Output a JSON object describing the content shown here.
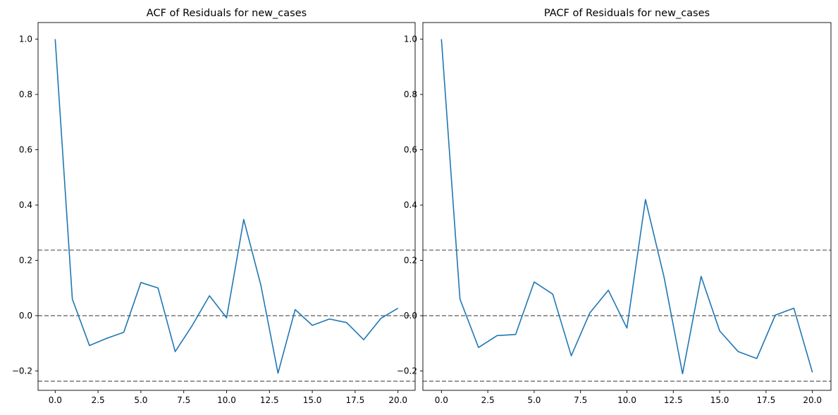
{
  "chart_data": [
    {
      "type": "line",
      "title": "ACF of Residuals for new_cases",
      "xlabel": "",
      "ylabel": "",
      "xlim": [
        -1.0,
        21.0
      ],
      "ylim": [
        -0.27,
        1.06
      ],
      "xticks": [
        0.0,
        2.5,
        5.0,
        7.5,
        10.0,
        12.5,
        15.0,
        17.5,
        20.0
      ],
      "xtick_labels": [
        "0.0",
        "2.5",
        "5.0",
        "7.5",
        "10.0",
        "12.5",
        "15.0",
        "17.5",
        "20.0"
      ],
      "yticks": [
        -0.2,
        0.0,
        0.2,
        0.4,
        0.6,
        0.8,
        1.0
      ],
      "ytick_labels": [
        "−0.2",
        "0.0",
        "0.2",
        "0.4",
        "0.6",
        "0.8",
        "1.0"
      ],
      "grid": false,
      "series": [
        {
          "color": "#1f77b4",
          "x": [
            0,
            1,
            2,
            3,
            4,
            5,
            6,
            7,
            8,
            9,
            10,
            11,
            12,
            13,
            14,
            15,
            16,
            17,
            18,
            19,
            20
          ],
          "values": [
            1.0,
            0.06,
            -0.108,
            -0.082,
            -0.06,
            0.12,
            0.1,
            -0.13,
            -0.035,
            0.072,
            -0.008,
            0.348,
            0.11,
            -0.208,
            0.022,
            -0.035,
            -0.012,
            -0.025,
            -0.087,
            -0.01,
            0.027
          ]
        }
      ],
      "reference_lines": [
        {
          "y": 0.237,
          "color": "#808080",
          "style": "dashed"
        },
        {
          "y": 0.0,
          "color": "#808080",
          "style": "dashed"
        },
        {
          "y": -0.237,
          "color": "#808080",
          "style": "dashed"
        }
      ]
    },
    {
      "type": "line",
      "title": "PACF of Residuals for new_cases",
      "xlabel": "",
      "ylabel": "",
      "xlim": [
        -1.0,
        21.0
      ],
      "ylim": [
        -0.27,
        1.06
      ],
      "xticks": [
        0.0,
        2.5,
        5.0,
        7.5,
        10.0,
        12.5,
        15.0,
        17.5,
        20.0
      ],
      "xtick_labels": [
        "0.0",
        "2.5",
        "5.0",
        "7.5",
        "10.0",
        "12.5",
        "15.0",
        "17.5",
        "20.0"
      ],
      "yticks": [
        -0.2,
        0.0,
        0.2,
        0.4,
        0.6,
        0.8,
        1.0
      ],
      "ytick_labels": [
        "−0.2",
        "0.0",
        "0.2",
        "0.4",
        "0.6",
        "0.8",
        "1.0"
      ],
      "grid": false,
      "series": [
        {
          "color": "#1f77b4",
          "x": [
            0,
            1,
            2,
            3,
            4,
            5,
            6,
            7,
            8,
            9,
            10,
            11,
            12,
            13,
            14,
            15,
            16,
            17,
            18,
            19,
            20
          ],
          "values": [
            1.0,
            0.06,
            -0.115,
            -0.072,
            -0.068,
            0.122,
            0.078,
            -0.145,
            0.01,
            0.092,
            -0.045,
            0.42,
            0.14,
            -0.21,
            0.142,
            -0.055,
            -0.13,
            -0.155,
            0.002,
            0.027,
            -0.205
          ]
        }
      ],
      "reference_lines": [
        {
          "y": 0.237,
          "color": "#808080",
          "style": "dashed"
        },
        {
          "y": 0.0,
          "color": "#808080",
          "style": "dashed"
        },
        {
          "y": -0.237,
          "color": "#808080",
          "style": "dashed"
        }
      ]
    }
  ]
}
